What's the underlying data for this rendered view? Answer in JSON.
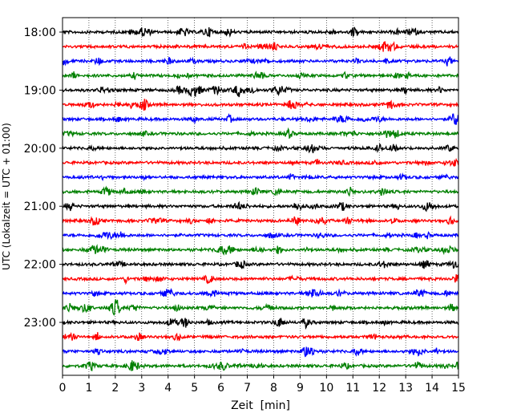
{
  "chart_data": {
    "type": "line",
    "title": "",
    "xlabel": "Zeit  [min]",
    "ylabel": "UTC (Lokalzeit = UTC + 01:00)",
    "xlim": [
      0,
      15
    ],
    "x_ticks": [
      "0",
      "1",
      "2",
      "3",
      "4",
      "5",
      "6",
      "7",
      "8",
      "9",
      "10",
      "11",
      "12",
      "13",
      "14",
      "15"
    ],
    "y_tick_labels": [
      "18:00",
      "19:00",
      "20:00",
      "21:00",
      "22:00",
      "23:00"
    ],
    "grid": "vertical-dotted",
    "trace_interval_minutes": 15,
    "start_utc": "18:00",
    "trace_count": 24,
    "colors": [
      "#000000",
      "#ff0000",
      "#0000ff",
      "#008000"
    ]
  }
}
